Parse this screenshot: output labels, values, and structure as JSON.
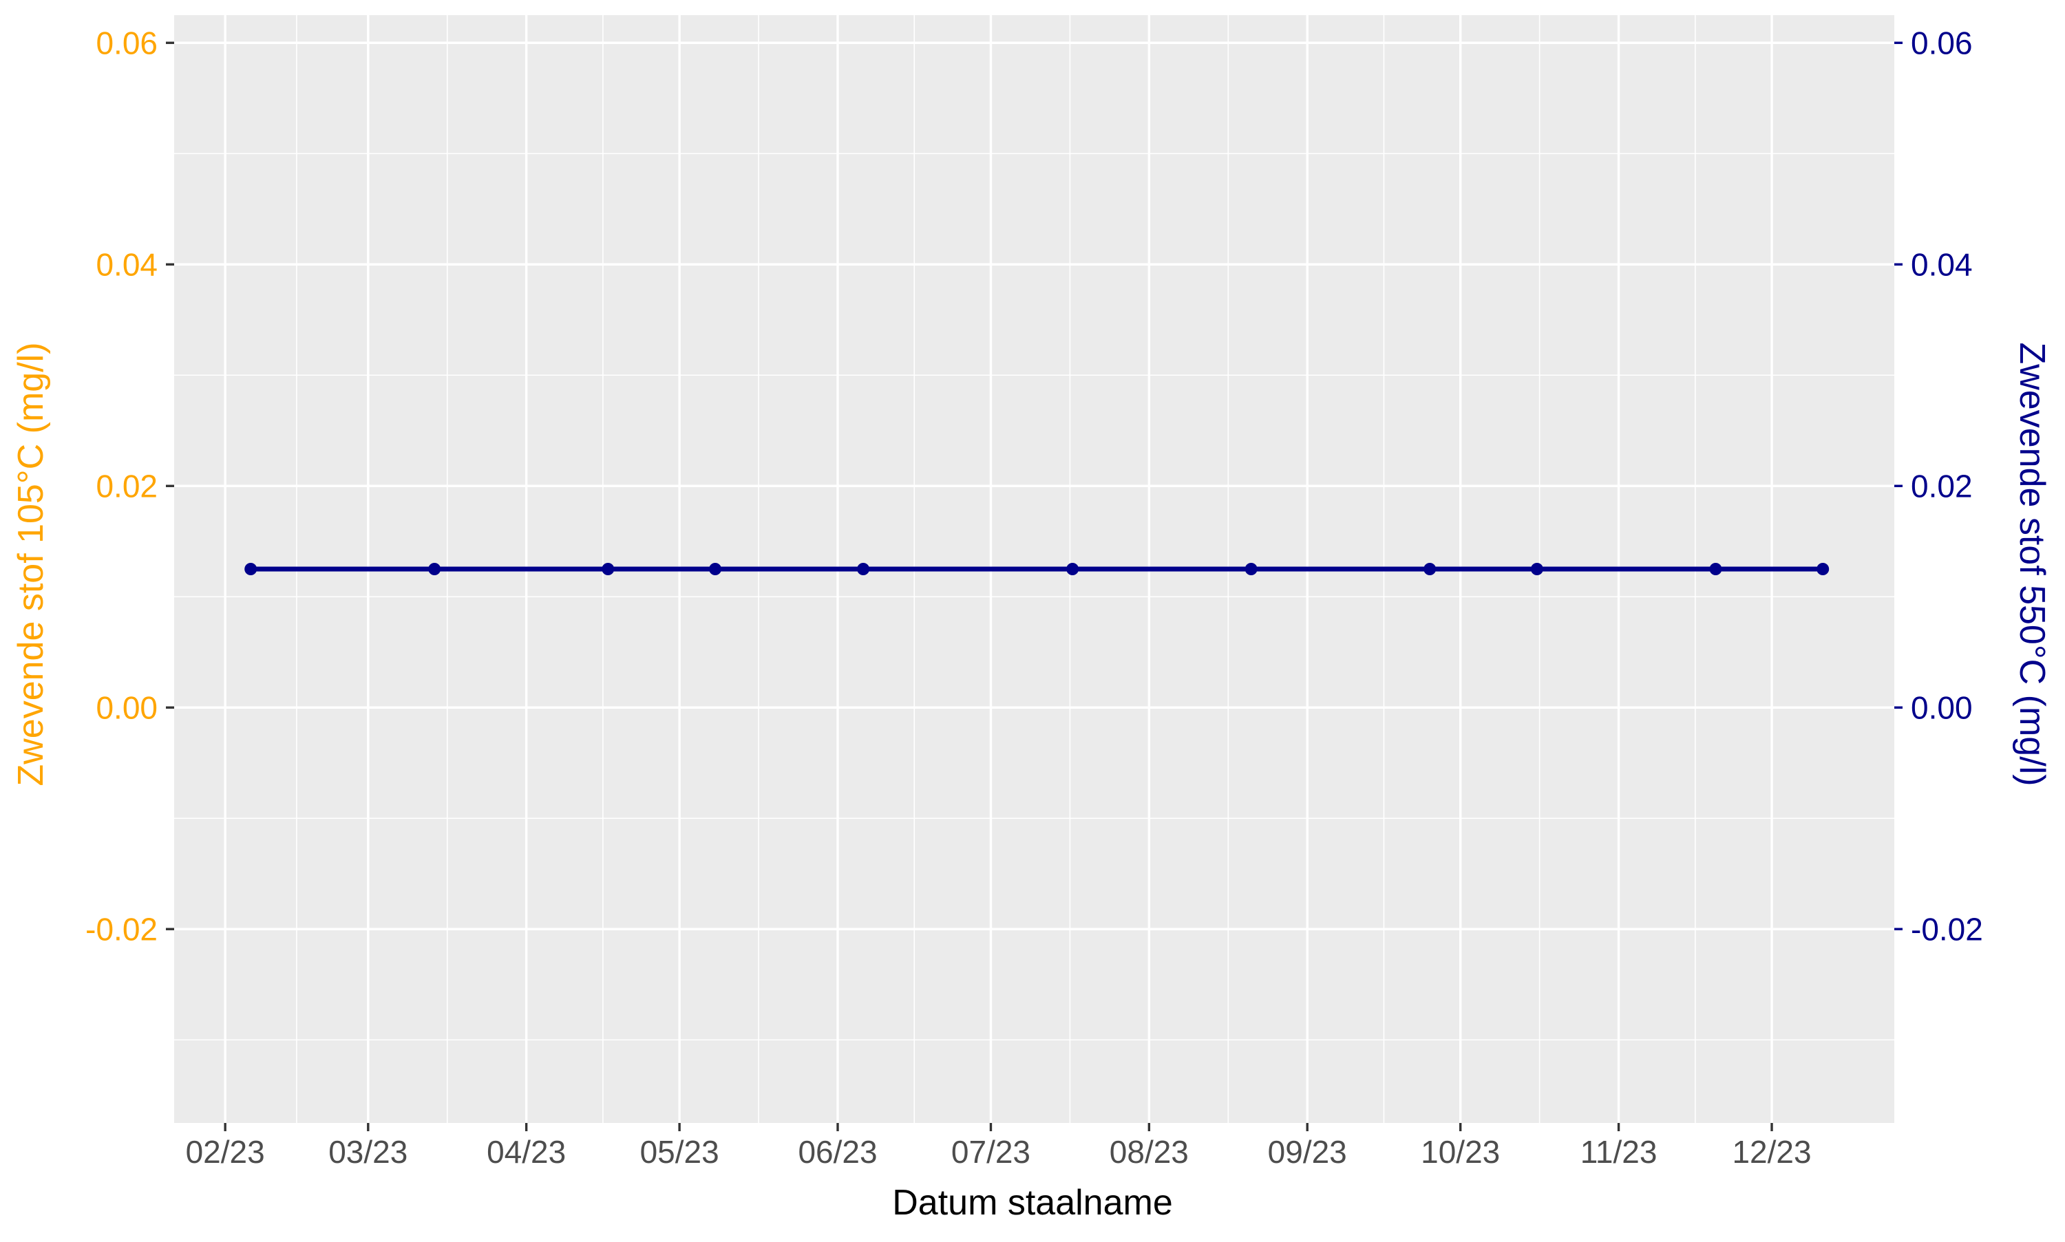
{
  "chart_data": {
    "type": "line",
    "title": "",
    "xlabel": "Datum staalname",
    "ylabel_left": "Zwevende stof 105°C (mg/l)",
    "ylabel_right": "Zwevende stof 550°C (mg/l)",
    "x_tick_labels": [
      "02/23",
      "03/23",
      "04/23",
      "05/23",
      "06/23",
      "07/23",
      "08/23",
      "09/23",
      "10/23",
      "11/23",
      "12/23"
    ],
    "x_tick_dates": [
      "2023-02-01",
      "2023-03-01",
      "2023-04-01",
      "2023-05-01",
      "2023-06-01",
      "2023-07-01",
      "2023-08-01",
      "2023-09-01",
      "2023-10-01",
      "2023-11-01",
      "2023-12-01"
    ],
    "x_range": [
      "2023-01-22",
      "2023-12-25"
    ],
    "ylim": [
      -0.0375,
      0.0625
    ],
    "y_ticks": [
      -0.02,
      0.0,
      0.02,
      0.04,
      0.06
    ],
    "y_tick_labels": [
      "-0.02",
      "0.00",
      "0.02",
      "0.04",
      "0.06"
    ],
    "grid": true,
    "colors": {
      "left_axis": "#FFA500",
      "right_axis": "#00008B",
      "series": "#00008B",
      "panel": "#EBEBEB",
      "grid": "#FFFFFF"
    },
    "series": [
      {
        "axis": "right",
        "x": [
          "2023-02-06",
          "2023-03-14",
          "2023-04-17",
          "2023-05-08",
          "2023-06-06",
          "2023-07-17",
          "2023-08-21",
          "2023-09-25",
          "2023-10-16",
          "2023-11-20",
          "2023-12-11"
        ],
        "y": [
          0.0125,
          0.0125,
          0.0125,
          0.0125,
          0.0125,
          0.0125,
          0.0125,
          0.0125,
          0.0125,
          0.0125,
          0.0125
        ]
      }
    ]
  }
}
